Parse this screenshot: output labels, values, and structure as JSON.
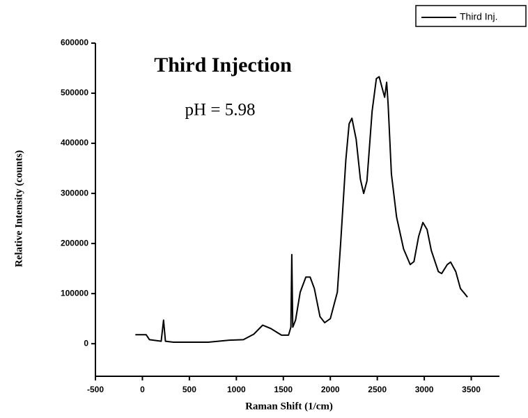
{
  "chart_data": {
    "type": "line",
    "annotations": [
      "Third Injection",
      "pH = 5.98"
    ],
    "x_label": "Raman Shift (1/cm)",
    "y_label": "Relative Intensity (counts)",
    "x": [
      -75,
      40,
      75,
      200,
      225,
      245,
      330,
      700,
      925,
      1075,
      1185,
      1280,
      1370,
      1480,
      1555,
      1580,
      1590,
      1600,
      1630,
      1680,
      1740,
      1785,
      1830,
      1890,
      1940,
      2000,
      2075,
      2110,
      2165,
      2200,
      2230,
      2275,
      2320,
      2355,
      2390,
      2445,
      2490,
      2520,
      2555,
      2578,
      2600,
      2615,
      2650,
      2705,
      2780,
      2850,
      2890,
      2940,
      2985,
      3030,
      3075,
      3150,
      3185,
      3245,
      3280,
      3335,
      3385,
      3430,
      3460
    ],
    "series": [
      {
        "name": "Third Inj.",
        "color": "#000000",
        "values": [
          18000,
          18000,
          8000,
          5000,
          47000,
          5000,
          3000,
          3000,
          7000,
          8000,
          19000,
          37000,
          30000,
          17000,
          17000,
          33000,
          178000,
          33000,
          47000,
          103000,
          133000,
          133000,
          110000,
          54000,
          42000,
          50000,
          103000,
          200000,
          367000,
          439000,
          450000,
          408000,
          328000,
          300000,
          325000,
          464000,
          529000,
          533000,
          508000,
          492000,
          522000,
          478000,
          339000,
          253000,
          189000,
          158000,
          164000,
          214000,
          242000,
          228000,
          186000,
          144000,
          140000,
          158000,
          163000,
          144000,
          110000,
          100000,
          93000
        ]
      }
    ],
    "xlim": [
      -500,
      3800
    ],
    "xticks": [
      -500,
      0,
      500,
      1000,
      1500,
      2000,
      2500,
      3000,
      3500
    ],
    "ylim": [
      -65000,
      600000
    ],
    "yticks": [
      0,
      100000,
      200000,
      300000,
      400000,
      500000,
      600000
    ],
    "legend": "upper right"
  }
}
